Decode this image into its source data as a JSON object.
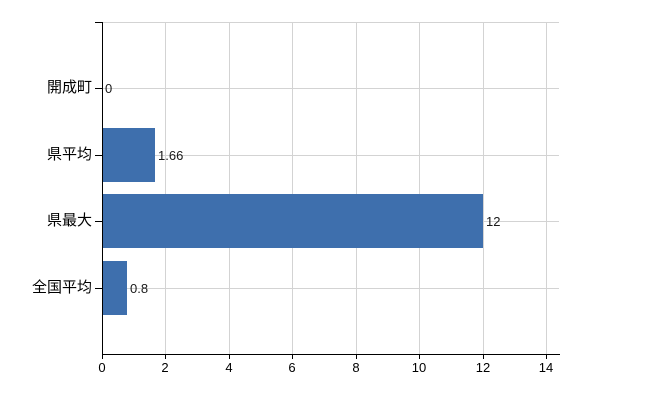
{
  "chart_data": {
    "type": "bar",
    "orientation": "horizontal",
    "title": "",
    "xlabel": "",
    "ylabel": "",
    "categories": [
      "開成町",
      "県平均",
      "県最大",
      "全国平均"
    ],
    "values": [
      0,
      1.66,
      12,
      0.8
    ],
    "value_labels": [
      "0",
      "1.66",
      "12",
      "0.8"
    ],
    "x_ticks": [
      0,
      2,
      4,
      6,
      8,
      10,
      12,
      14
    ],
    "x_tick_labels": [
      "0",
      "2",
      "4",
      "6",
      "8",
      "10",
      "12",
      "14"
    ],
    "xlim": [
      0,
      14.4
    ],
    "grid": true,
    "legend": false,
    "colors": {
      "bar": "#3e6fad",
      "grid": "#d3d3d3",
      "axis": "#000000",
      "text": "#000000",
      "value_text": "#1a1a1a",
      "background": "#ffffff"
    }
  }
}
